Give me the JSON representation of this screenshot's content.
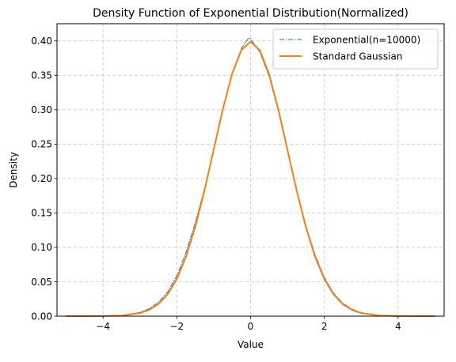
{
  "chart_data": {
    "type": "line",
    "title": "Density Function of Exponential Distribution(Normalized)",
    "xlabel": "Value",
    "ylabel": "Density",
    "xlim": [
      -5.25,
      5.25
    ],
    "ylim": [
      0.0,
      0.425
    ],
    "xticks": [
      -4,
      -2,
      0,
      2,
      4
    ],
    "xtick_labels": [
      "−4",
      "−2",
      "0",
      "2",
      "4"
    ],
    "yticks": [
      0.0,
      0.05,
      0.1,
      0.15,
      0.2,
      0.25,
      0.3,
      0.35,
      0.4
    ],
    "ytick_labels": [
      "0.00",
      "0.05",
      "0.10",
      "0.15",
      "0.20",
      "0.25",
      "0.30",
      "0.35",
      "0.40"
    ],
    "grid": true,
    "legend_position": "top-right",
    "series": [
      {
        "name": "Exponential(n=10000)",
        "color": "#1f77b4",
        "style": "dashdot",
        "x": [
          -5.0,
          -4.5,
          -4.0,
          -3.5,
          -3.0,
          -2.75,
          -2.5,
          -2.25,
          -2.0,
          -1.75,
          -1.5,
          -1.25,
          -1.0,
          -0.75,
          -0.5,
          -0.25,
          -0.05,
          0.0,
          0.25,
          0.5,
          0.75,
          1.0,
          1.25,
          1.5,
          1.75,
          2.0,
          2.25,
          2.5,
          2.75,
          3.0,
          3.5,
          4.0,
          4.5,
          5.0
        ],
        "y": [
          0.0,
          0.0,
          0.0002,
          0.0012,
          0.0055,
          0.0108,
          0.0201,
          0.0352,
          0.0585,
          0.0925,
          0.1355,
          0.1852,
          0.2425,
          0.3015,
          0.352,
          0.389,
          0.4045,
          0.403,
          0.384,
          0.349,
          0.2985,
          0.2405,
          0.1825,
          0.1315,
          0.0895,
          0.0565,
          0.0335,
          0.019,
          0.0102,
          0.0052,
          0.0011,
          0.0002,
          0.0,
          0.0
        ]
      },
      {
        "name": "Standard Gaussian",
        "color": "#ff7f0e",
        "style": "solid",
        "x": [
          -5.0,
          -4.5,
          -4.0,
          -3.5,
          -3.0,
          -2.75,
          -2.5,
          -2.25,
          -2.0,
          -1.75,
          -1.5,
          -1.25,
          -1.0,
          -0.75,
          -0.5,
          -0.25,
          0.0,
          0.25,
          0.5,
          0.75,
          1.0,
          1.25,
          1.5,
          1.75,
          2.0,
          2.25,
          2.5,
          2.75,
          3.0,
          3.5,
          4.0,
          4.5,
          5.0
        ],
        "y": [
          0.0,
          0.0,
          0.0001,
          0.0009,
          0.0044,
          0.0091,
          0.0175,
          0.0317,
          0.054,
          0.0863,
          0.1295,
          0.1826,
          0.242,
          0.3011,
          0.3521,
          0.3867,
          0.3989,
          0.3867,
          0.3521,
          0.3011,
          0.242,
          0.1826,
          0.1295,
          0.0863,
          0.054,
          0.0317,
          0.0175,
          0.0091,
          0.0044,
          0.0009,
          0.0001,
          0.0,
          0.0
        ]
      }
    ]
  }
}
